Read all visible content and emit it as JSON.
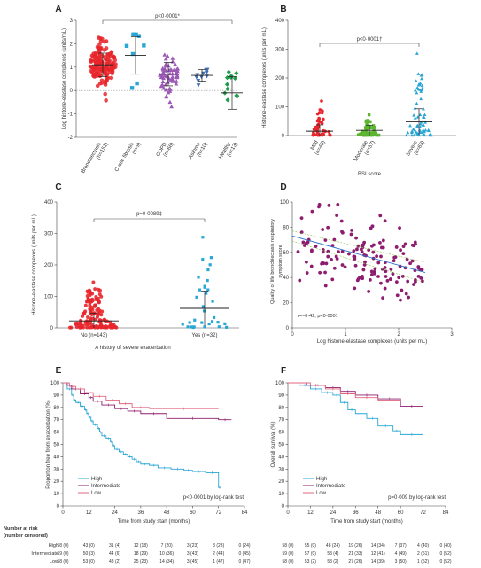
{
  "chart_data": [
    {
      "panel": "A",
      "type": "scatter",
      "ylabel": "Log histone-elastase complexes (units/mL)",
      "ylim": [
        -2,
        3
      ],
      "yticks": [
        "-2",
        "-1",
        "0",
        "1",
        "2",
        "3"
      ],
      "categories": [
        "Bronchiectasis (n=151)",
        "Cystic fibrosis (n=9)",
        "COPD (n=66)",
        "Asthma (n=10)",
        "Healthy (n=13)"
      ],
      "colors": [
        "#e8262c",
        "#29a6d5",
        "#9b59b6",
        "#3f6fb0",
        "#1e9e4a"
      ],
      "n": [
        151,
        9,
        66,
        10,
        13
      ],
      "summary": {
        "mean": [
          1.1,
          1.5,
          0.7,
          0.65,
          -0.1
        ],
        "sd": [
          0.5,
          0.8,
          0.5,
          0.25,
          0.7
        ]
      },
      "annotation": "p<0·0001*"
    },
    {
      "panel": "B",
      "type": "scatter",
      "ylabel": "Histone-elastase complexes (units per mL)",
      "xlabel": "BSI score",
      "ylim": [
        0,
        400
      ],
      "yticks": [
        "0",
        "100",
        "200",
        "300",
        "400"
      ],
      "categories": [
        "Mild (n=40)",
        "Moderate (n=57)",
        "Severe (n=69)"
      ],
      "colors": [
        "#e8262c",
        "#5cb531",
        "#29a6d5"
      ],
      "n": [
        40,
        57,
        69
      ],
      "max": [
        120,
        72,
        285
      ],
      "summary": {
        "mean": [
          15,
          18,
          48
        ],
        "sd": [
          22,
          18,
          45
        ]
      },
      "annotation": "p<0·0001†"
    },
    {
      "panel": "C",
      "type": "scatter",
      "ylabel": "Histone-elastase complexes (units per mL)",
      "xlabel": "A history of severe exacerbation",
      "ylim": [
        0,
        400
      ],
      "yticks": [
        "0",
        "100",
        "200",
        "300",
        "400"
      ],
      "categories": [
        "No (n=143)",
        "Yes (n=32)"
      ],
      "colors": [
        "#e8262c",
        "#29a6d5"
      ],
      "n": [
        143,
        32
      ],
      "max": [
        145,
        288
      ],
      "summary": {
        "mean": [
          22,
          62
        ],
        "sd": [
          25,
          55
        ]
      },
      "annotation": "p=0·0089‡"
    },
    {
      "panel": "D",
      "type": "scatter",
      "ylabel": "Quality of life bronchiectasis respiratory symptom score",
      "xlabel": "Log histone-elastase complexes (units per mL)",
      "xlim": [
        0,
        3
      ],
      "ylim": [
        0,
        100
      ],
      "xticks": [
        "0",
        "1",
        "2",
        "3"
      ],
      "yticks": [
        "0",
        "20",
        "40",
        "60",
        "80",
        "100"
      ],
      "n": 151,
      "fit": {
        "x": [
          0,
          2.5
        ],
        "y": [
          73,
          44
        ]
      },
      "color": "#8e1c6f",
      "annotation": "r=−0·42, p<0·0001"
    },
    {
      "panel": "E",
      "type": "line",
      "ylabel": "Proportion free from exacerbation (%)",
      "xlabel": "Time from study start (months)",
      "xlim": [
        0,
        84
      ],
      "ylim": [
        0,
        100
      ],
      "xticks": [
        "0",
        "12",
        "24",
        "36",
        "48",
        "60",
        "72",
        "84"
      ],
      "yticks": [
        "0",
        "10",
        "20",
        "30",
        "40",
        "50",
        "60",
        "70",
        "80",
        "90",
        "100"
      ],
      "series": [
        {
          "name": "High",
          "color": "#29a6d5",
          "x": [
            0,
            2,
            4,
            5,
            6,
            8,
            10,
            11,
            12,
            13,
            14,
            16,
            17,
            18,
            20,
            22,
            23,
            24,
            26,
            28,
            30,
            32,
            34,
            36,
            40,
            44,
            50,
            56,
            60,
            66,
            72,
            73
          ],
          "y": [
            100,
            95,
            90,
            86,
            84,
            81,
            78,
            75,
            72,
            69,
            66,
            63,
            60,
            57,
            55,
            52,
            49,
            46,
            44,
            42,
            40,
            38,
            36,
            34,
            33,
            31,
            30,
            29,
            28,
            27,
            15,
            15
          ]
        },
        {
          "name": "Intermediate",
          "color": "#8e1c6f",
          "x": [
            0,
            2,
            4,
            8,
            12,
            14,
            18,
            24,
            30,
            36,
            48,
            72,
            78
          ],
          "y": [
            100,
            98,
            95,
            91,
            88,
            85,
            82,
            79,
            77,
            75,
            71,
            70,
            70
          ]
        },
        {
          "name": "Low",
          "color": "#e0667e",
          "x": [
            0,
            3,
            6,
            10,
            14,
            20,
            26,
            32,
            40,
            72
          ],
          "y": [
            100,
            97,
            95,
            92,
            89,
            86,
            83,
            80,
            79,
            79
          ]
        }
      ],
      "annotation": "p<0·0001 by log-rank test"
    },
    {
      "panel": "F",
      "type": "line",
      "ylabel": "Overall survival (%)",
      "xlabel": "Time from study start (months)",
      "xlim": [
        0,
        84
      ],
      "ylim": [
        0,
        100
      ],
      "xticks": [
        "0",
        "12",
        "24",
        "36",
        "48",
        "60",
        "72",
        "84"
      ],
      "yticks": [
        "0",
        "10",
        "20",
        "30",
        "40",
        "50",
        "60",
        "70",
        "80",
        "90",
        "100"
      ],
      "series": [
        {
          "name": "High",
          "color": "#29a6d5",
          "x": [
            0,
            6,
            12,
            18,
            24,
            28,
            32,
            36,
            42,
            48,
            56,
            60,
            72
          ],
          "y": [
            100,
            98,
            95,
            92,
            90,
            84,
            78,
            75,
            71,
            65,
            61,
            58,
            58
          ]
        },
        {
          "name": "Intermediate",
          "color": "#8e1c6f",
          "x": [
            0,
            10,
            20,
            28,
            36,
            48,
            60,
            72
          ],
          "y": [
            100,
            98,
            96,
            93,
            90,
            87,
            81,
            81
          ]
        },
        {
          "name": "Low",
          "color": "#e0667e",
          "x": [
            0,
            12,
            20,
            28,
            36,
            48,
            60
          ],
          "y": [
            100,
            98,
            95,
            91,
            88,
            86,
            86
          ]
        }
      ],
      "annotation": "p=0·009 by log-rank test"
    }
  ],
  "panel_labels": [
    "A",
    "B",
    "C",
    "D",
    "E",
    "F"
  ],
  "risk_table": {
    "title_line1": "Number at risk",
    "title_line2": "(number censored)",
    "rows": [
      "High",
      "Intermediate",
      "Low"
    ],
    "E": [
      [
        "58 (0)",
        "43 (0)",
        "31 (4)",
        "12 (18)",
        "7 (20)",
        "3 (23)",
        "3 (23)",
        "0 (24)"
      ],
      [
        "59 (0)",
        "50 (3)",
        "44 (6)",
        "18 (29)",
        "10 (36)",
        "3 (43)",
        "2 (44)",
        "0 (45)"
      ],
      [
        "58 (0)",
        "53 (0)",
        "48 (2)",
        "25 (23)",
        "14 (34)",
        "3 (45)",
        "1 (47)",
        "0 (47)"
      ]
    ],
    "F": [
      [
        "58 (0)",
        "55 (0)",
        "48 (24)",
        "19 (26)",
        "14 (34)",
        "7 (37)",
        "4 (40)",
        "0 (40)"
      ],
      [
        "59 (0)",
        "57 (0)",
        "53 (4)",
        "21 (33)",
        "12 (41)",
        "4 (49)",
        "2 (51)",
        "0 (52)"
      ],
      [
        "58 (0)",
        "53 (2)",
        "53 (2)",
        "27 (26)",
        "14 (39)",
        "3 (50)",
        "1 (52)",
        "0 (52)"
      ]
    ]
  }
}
